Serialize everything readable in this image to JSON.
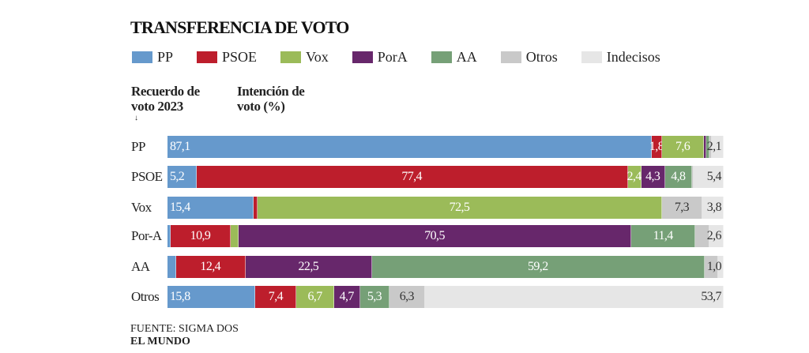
{
  "chart_data": {
    "type": "bar",
    "orientation": "horizontal-stacked-100",
    "title": "TRANSFERENCIA DE VOTO",
    "row_header": "Recuerdo de voto 2023",
    "value_header": "Intención de voto (%)",
    "legend_position": "top",
    "series_names": [
      "PP",
      "PSOE",
      "Vox",
      "PorA",
      "AA",
      "Otros",
      "Indecisos"
    ],
    "colors": [
      "#6699cc",
      "#bd1e2c",
      "#9bbb59",
      "#67276b",
      "#76a077",
      "#c9c9c9",
      "#e6e6e6"
    ],
    "label_dark": [
      false,
      false,
      false,
      false,
      false,
      true,
      true
    ],
    "rows": [
      {
        "name": "PP",
        "values": [
          87.1,
          1.8,
          7.6,
          0.4,
          0.6,
          0.4,
          2.1
        ],
        "labels": [
          "87,1",
          "1,8",
          "7,6",
          null,
          null,
          null,
          "2,1"
        ]
      },
      {
        "name": "PSOE",
        "values": [
          5.2,
          77.4,
          2.4,
          4.3,
          4.8,
          0.3,
          5.4
        ],
        "labels": [
          "5,2",
          "77,4",
          "2,4",
          "4,3",
          "4,8",
          null,
          "5,4"
        ]
      },
      {
        "name": "Vox",
        "values": [
          15.4,
          0.8,
          72.5,
          0,
          0,
          7.3,
          3.8
        ],
        "labels": [
          "15,4",
          null,
          "72,5",
          null,
          null,
          "7,3",
          "3,8"
        ]
      },
      {
        "name": "Por-A",
        "values": [
          0.5,
          10.9,
          1.3,
          70.5,
          11.4,
          2.5,
          2.6
        ],
        "labels": [
          null,
          "10,9",
          null,
          "70,5",
          "11,4",
          null,
          "2,6"
        ]
      },
      {
        "name": "AA",
        "values": [
          1.5,
          12.4,
          0,
          22.5,
          59.2,
          2.4,
          1.0
        ],
        "labels": [
          null,
          "12,4",
          null,
          "22,5",
          "59,2",
          null,
          "1,0"
        ]
      },
      {
        "name": "Otros",
        "values": [
          15.8,
          7.4,
          6.7,
          4.7,
          5.3,
          6.3,
          53.7
        ],
        "labels": [
          "15,8",
          "7,4",
          "6,7",
          "4,7",
          "5,3",
          "6,3",
          "53,7"
        ]
      }
    ]
  },
  "footer": {
    "source": "FUENTE: SIGMA DOS",
    "brand": "EL MUNDO"
  }
}
